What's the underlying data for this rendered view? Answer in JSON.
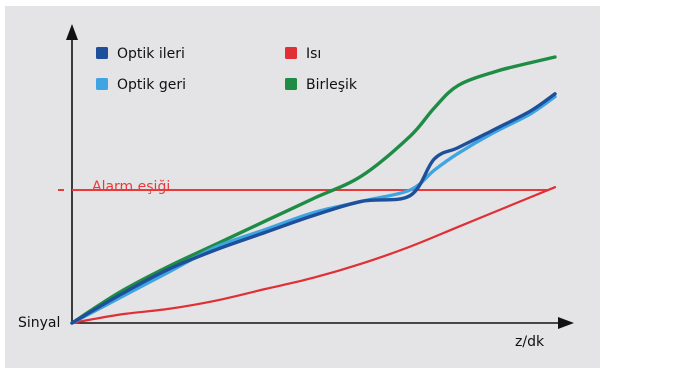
{
  "chart_data": {
    "type": "line",
    "title": "",
    "xlabel": "z/dk",
    "ylabel": "Sinyal",
    "xlim": [
      0,
      100
    ],
    "ylim": [
      0,
      100
    ],
    "grid": false,
    "legend_position": "top-left",
    "background_color": "#e4e4e6",
    "threshold": {
      "label": "Alarm eşiği",
      "value": 47,
      "color": "#e83a3a"
    },
    "series": [
      {
        "name": "Optik ileri",
        "color": "#1d4f9a",
        "x": [
          0,
          10,
          20,
          30,
          40,
          50,
          60,
          70,
          75,
          80,
          87,
          95,
          100
        ],
        "y": [
          0,
          10,
          19,
          26,
          32,
          38,
          43,
          45,
          58,
          62,
          68,
          75,
          81
        ]
      },
      {
        "name": "Optik geri",
        "color": "#3fa4e2",
        "x": [
          0,
          10,
          20,
          30,
          40,
          50,
          60,
          70,
          75,
          80,
          87,
          95,
          100
        ],
        "y": [
          0,
          9,
          18,
          27,
          33,
          39,
          43,
          47,
          54,
          60,
          67,
          74,
          80
        ]
      },
      {
        "name": "Isı",
        "color": "#e02f35",
        "x": [
          0,
          10,
          20,
          30,
          40,
          50,
          60,
          70,
          80,
          90,
          100
        ],
        "y": [
          0,
          3,
          5,
          8,
          12,
          16,
          21,
          27,
          34,
          41,
          48
        ]
      },
      {
        "name": "Birleşik",
        "color": "#1f8c45",
        "x": [
          0,
          10,
          20,
          30,
          40,
          50,
          60,
          70,
          75,
          80,
          88,
          95,
          100
        ],
        "y": [
          0,
          11,
          20,
          28,
          36,
          44,
          52,
          66,
          76,
          84,
          89,
          92,
          94
        ]
      }
    ]
  }
}
